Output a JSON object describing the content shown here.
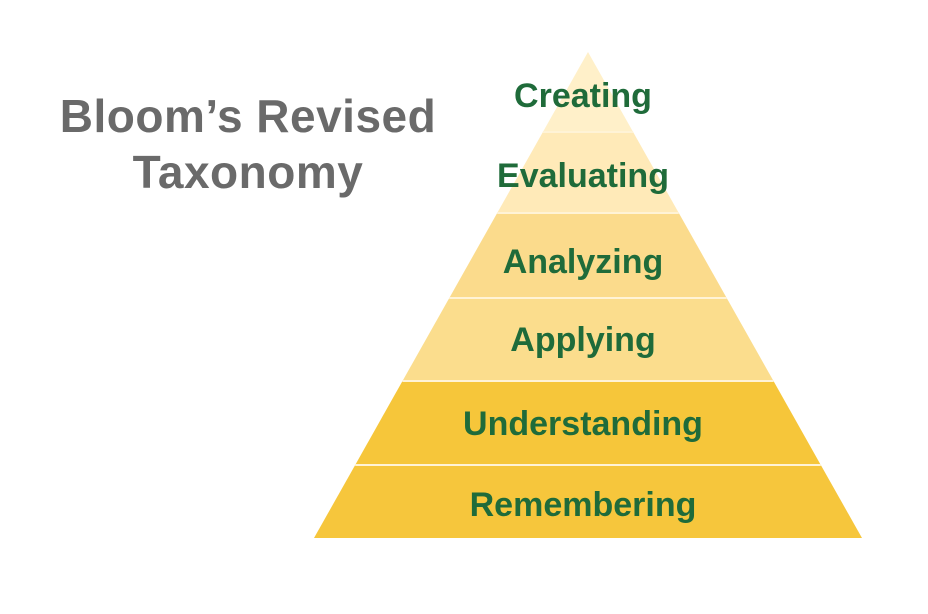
{
  "title": {
    "line1": "Bloom’s Revised",
    "line2": "Taxonomy"
  },
  "pyramid": {
    "label_color": "#1f6b3a",
    "divider_color": "#fff3d6",
    "levels": [
      {
        "label": "Creating",
        "color": "#fff0c9"
      },
      {
        "label": "Evaluating",
        "color": "#ffeab8"
      },
      {
        "label": "Analyzing",
        "color": "#fbdb8c"
      },
      {
        "label": "Applying",
        "color": "#fbdd8d"
      },
      {
        "label": "Understanding",
        "color": "#f6c63a"
      },
      {
        "label": "Remembering",
        "color": "#f6c63c"
      }
    ]
  }
}
